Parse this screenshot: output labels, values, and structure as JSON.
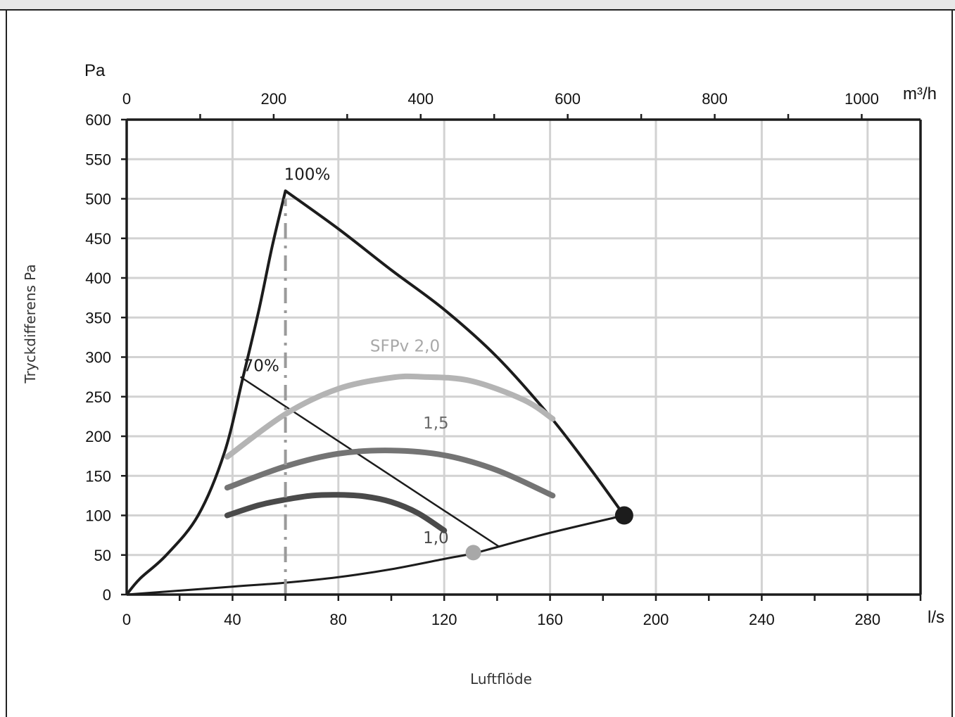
{
  "chart_data": {
    "type": "line",
    "xlabel": "Luftflöde",
    "ylabel": "Tryckdifferens Pa",
    "x_unit": "l/s",
    "x2_unit": "m³/h",
    "y_unit": "Pa",
    "xlim": [
      0,
      300
    ],
    "ylim": [
      0,
      600
    ],
    "x2lim": [
      0,
      1080
    ],
    "x_ticks": [
      0,
      40,
      80,
      120,
      160,
      200,
      240,
      280
    ],
    "y_ticks": [
      0,
      50,
      100,
      150,
      200,
      250,
      300,
      350,
      400,
      450,
      500,
      550,
      600
    ],
    "x2_ticks": [
      0,
      200,
      400,
      600,
      800,
      1000
    ],
    "grid": true,
    "series": [
      {
        "key": "upper",
        "color": "#1c1c1c",
        "x": [
          0,
          5,
          15,
          27,
          37,
          44,
          50,
          55,
          60,
          80,
          100,
          120,
          140,
          160,
          175,
          188
        ],
        "y": [
          0,
          20,
          50,
          100,
          180,
          275,
          360,
          440,
          510,
          462,
          410,
          360,
          300,
          225,
          160,
          100
        ]
      },
      {
        "key": "lower",
        "color": "#1c1c1c",
        "x": [
          0,
          40,
          60,
          80,
          100,
          120,
          131,
          140,
          160,
          188
        ],
        "y": [
          0,
          10,
          15,
          22,
          32,
          45,
          52,
          60,
          78,
          100
        ]
      },
      {
        "key": "line70",
        "color": "#1c1c1c",
        "x": [
          43,
          141
        ],
        "y": [
          275,
          60
        ]
      },
      {
        "key": "sfp10",
        "color": "#4a4a4a",
        "x": [
          38,
          50,
          60,
          70,
          80,
          90,
          100,
          110,
          120
        ],
        "y": [
          100,
          113,
          120,
          125,
          126,
          124,
          117,
          103,
          81
        ]
      },
      {
        "key": "sfp15",
        "color": "#747474",
        "x": [
          38,
          60,
          80,
          100,
          120,
          140,
          161
        ],
        "y": [
          135,
          162,
          178,
          182,
          176,
          157,
          125
        ]
      },
      {
        "key": "sfp20",
        "color": "#b4b4b4",
        "x": [
          38,
          60,
          80,
          100,
          112,
          130,
          150,
          161
        ],
        "y": [
          174,
          228,
          260,
          274,
          275,
          270,
          246,
          222
        ]
      },
      {
        "key": "ref60",
        "color": "#9a9a9a",
        "x": [
          60,
          60
        ],
        "y": [
          0,
          500
        ]
      }
    ],
    "points": [
      {
        "x": 188,
        "y": 100,
        "color": "#1c1c1c"
      },
      {
        "x": 131,
        "y": 53,
        "color": "#a8a8a8"
      }
    ],
    "annotations": [
      {
        "text": "100%",
        "x": 60,
        "y": 510,
        "color": "#1c1c1c"
      },
      {
        "text": "70%",
        "x": 43,
        "y": 275,
        "color": "#1c1c1c"
      },
      {
        "text": "SFPv 2,0",
        "x": 92,
        "y": 307,
        "color": "#a8a8a8"
      },
      {
        "text": "1,5",
        "x": 112,
        "y": 210,
        "color": "#6a6a6a"
      },
      {
        "text": "1,0",
        "x": 112,
        "y": 65,
        "color": "#4a4a4a"
      }
    ]
  }
}
